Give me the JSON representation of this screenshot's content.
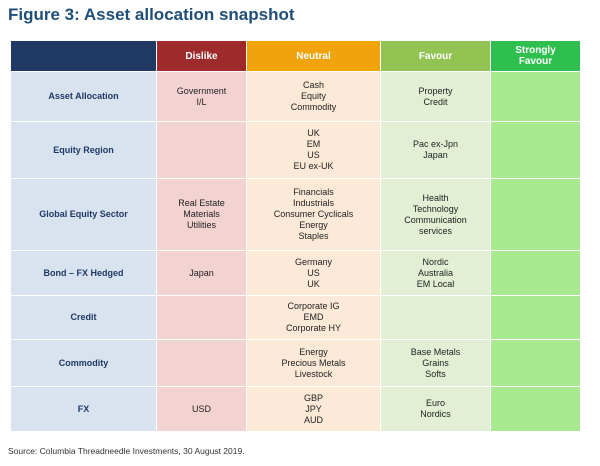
{
  "title": "Figure 3: Asset allocation snapshot",
  "headers": {
    "dislike": "Dislike",
    "neutral": "Neutral",
    "favour": "Favour",
    "strong_line1": "Strongly",
    "strong_line2": "Favour"
  },
  "rows": [
    {
      "label": "Asset Allocation",
      "dislike": [
        "Government",
        "I/L"
      ],
      "neutral": [
        "Cash",
        "Equity",
        "Commodity"
      ],
      "favour": [
        "Property",
        "Credit"
      ]
    },
    {
      "label": "Equity Region",
      "dislike": [],
      "neutral": [
        "UK",
        "EM",
        "US",
        "EU ex-UK"
      ],
      "favour": [
        "Pac ex-Jpn",
        "Japan"
      ]
    },
    {
      "label": "Global Equity Sector",
      "dislike": [
        "Real Estate",
        "Materials",
        "Utilities"
      ],
      "neutral": [
        "Financials",
        "Industrials",
        "Consumer Cyclicals",
        "Energy",
        "Staples"
      ],
      "favour": [
        "Health",
        "Technology",
        "Communication",
        "services"
      ]
    },
    {
      "label": "Bond – FX Hedged",
      "dislike": [
        "Japan"
      ],
      "neutral": [
        "Germany",
        "US",
        "UK"
      ],
      "favour": [
        "Nordic",
        "Australia",
        "EM Local"
      ]
    },
    {
      "label": "Credit",
      "dislike": [],
      "neutral": [
        "Corporate IG",
        "EMD",
        "Corporate HY"
      ],
      "favour": []
    },
    {
      "label": "Commodity",
      "dislike": [],
      "neutral": [
        "Energy",
        "Precious Metals",
        "Livestock"
      ],
      "favour": [
        "Base Metals",
        "Grains",
        "Softs"
      ]
    },
    {
      "label": "FX",
      "dislike": [
        "USD"
      ],
      "neutral": [
        "GBP",
        "JPY",
        "AUD"
      ],
      "favour": [
        "Euro",
        "Nordics"
      ]
    }
  ],
  "source": "Source: Columbia Threadneedle Investments, 30 August 2019."
}
